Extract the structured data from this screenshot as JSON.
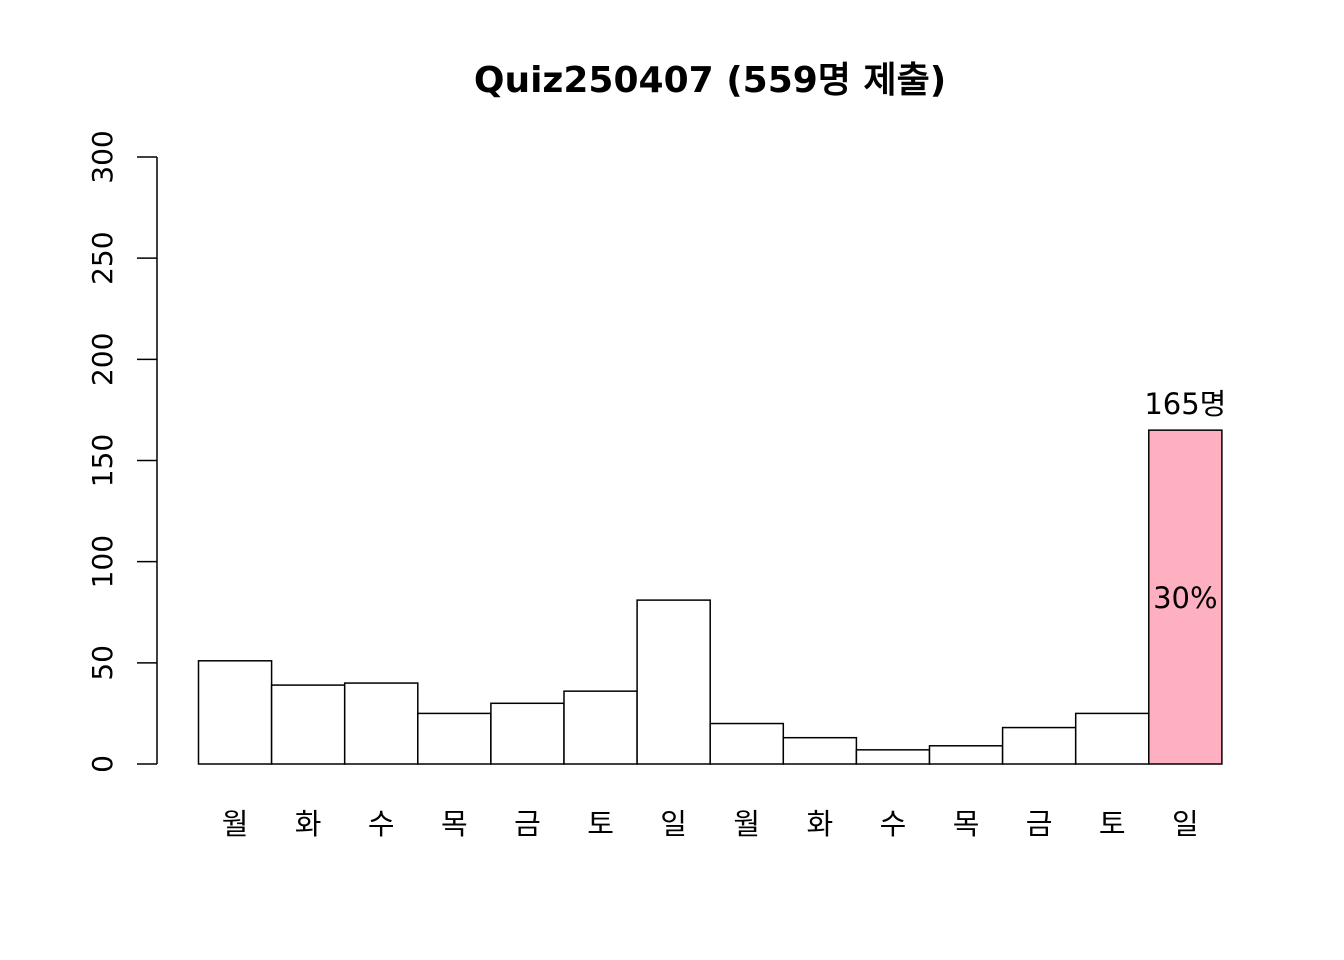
{
  "chart_data": {
    "type": "bar",
    "title": "Quiz250407 (559명 제출)",
    "xlabel": "",
    "ylabel": "",
    "ylim": [
      0,
      300
    ],
    "yticks": [
      0,
      50,
      100,
      150,
      200,
      250,
      300
    ],
    "grid": false,
    "legend": "none",
    "categories": [
      "월",
      "화",
      "수",
      "목",
      "금",
      "토",
      "일",
      "월",
      "화",
      "수",
      "목",
      "금",
      "토",
      "일"
    ],
    "values": [
      51,
      39,
      40,
      25,
      30,
      36,
      81,
      20,
      13,
      7,
      9,
      18,
      25,
      165
    ],
    "highlight_index": 13,
    "highlight_color": "#ffb0c0",
    "bar_color": "#ffffff",
    "annotations": {
      "top_label": "165명",
      "percent_label": "30%"
    }
  }
}
